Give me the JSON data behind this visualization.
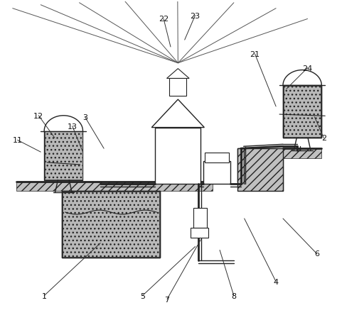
{
  "bg_color": "#ffffff",
  "lc": "#222222",
  "hatch_fc": "#c0c0c0",
  "gravel_fc": "#b8b8b8",
  "figsize": [
    4.74,
    4.52
  ],
  "dpi": 100
}
